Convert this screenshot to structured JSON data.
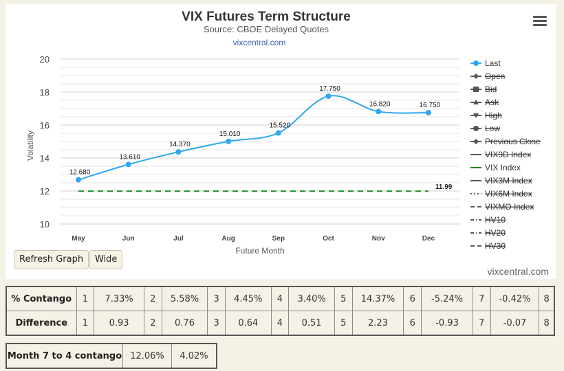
{
  "header": {
    "title": "VIX Futures Term Structure",
    "subtitle": "Source: CBOE Delayed Quotes",
    "link": "vixcentral.com"
  },
  "watermark": "vixcentral.com",
  "buttons": {
    "refresh": "Refresh Graph",
    "wide": "Wide"
  },
  "menu_icon": "hamburger-menu-icon",
  "colors": {
    "last": "#2ea8f2",
    "vix_index": "#1b8a1b",
    "grid": "#d9d9d9"
  },
  "chart_data": {
    "type": "line",
    "title": "VIX Futures Term Structure",
    "subtitle": "Source: CBOE Delayed Quotes",
    "xlabel": "Future Month",
    "ylabel": "Volatility",
    "categories": [
      "May",
      "Jun",
      "Jul",
      "Aug",
      "Sep",
      "Oct",
      "Nov",
      "Dec"
    ],
    "ylim": [
      10,
      20
    ],
    "yticks": [
      10,
      12,
      14,
      16,
      18,
      20
    ],
    "grid": true,
    "legend_position": "right",
    "series": [
      {
        "name": "Last",
        "values": [
          12.68,
          13.61,
          14.37,
          15.01,
          15.52,
          17.75,
          16.82,
          16.75
        ],
        "labels": [
          "12.680",
          "13.610",
          "14.370",
          "15.010",
          "15.520",
          "17.750",
          "16.820",
          "16.750"
        ],
        "style": "solid-marker",
        "color": "#2ea8f2"
      },
      {
        "name": "VIX Index",
        "values": [
          11.99,
          11.99,
          11.99,
          11.99,
          11.99,
          11.99,
          11.99,
          11.99
        ],
        "end_label": "11.99",
        "style": "dashed",
        "color": "#1b8a1b"
      }
    ],
    "legend": [
      {
        "name": "Last",
        "symbol": "circle",
        "color": "#2ea8f2",
        "hidden": false
      },
      {
        "name": "Open",
        "symbol": "diamond",
        "color": "#555555",
        "hidden": true
      },
      {
        "name": "Bid",
        "symbol": "square",
        "color": "#555555",
        "hidden": true
      },
      {
        "name": "Ask",
        "symbol": "triangle",
        "color": "#555555",
        "hidden": true
      },
      {
        "name": "High",
        "symbol": "triangle-down",
        "color": "#555555",
        "hidden": true
      },
      {
        "name": "Low",
        "symbol": "circle",
        "color": "#555555",
        "hidden": true
      },
      {
        "name": "Previous Close",
        "symbol": "diamond",
        "color": "#555555",
        "hidden": true
      },
      {
        "name": "VIX9D Index",
        "symbol": "line",
        "color": "#555555",
        "hidden": true
      },
      {
        "name": "VIX Index",
        "symbol": "line",
        "color": "#1b8a1b",
        "hidden": false
      },
      {
        "name": "VIX3M Index",
        "symbol": "line",
        "color": "#555555",
        "hidden": true
      },
      {
        "name": "VIX6M Index",
        "symbol": "dotted",
        "color": "#555555",
        "hidden": true
      },
      {
        "name": "VIXMO Index",
        "symbol": "dashed",
        "color": "#555555",
        "hidden": true
      },
      {
        "name": "HV10",
        "symbol": "dashdot",
        "color": "#555555",
        "hidden": true
      },
      {
        "name": "HV20",
        "symbol": "dashdot",
        "color": "#555555",
        "hidden": true
      },
      {
        "name": "HV30",
        "symbol": "dashed",
        "color": "#555555",
        "hidden": true
      }
    ]
  },
  "contango_table": {
    "rows": [
      {
        "label": "% Contango",
        "cells": [
          "1",
          "7.33%",
          "2",
          "5.58%",
          "3",
          "4.45%",
          "4",
          "3.40%",
          "5",
          "14.37%",
          "6",
          "-5.24%",
          "7",
          "-0.42%",
          "8"
        ]
      },
      {
        "label": "Difference",
        "cells": [
          "1",
          "0.93",
          "2",
          "0.76",
          "3",
          "0.64",
          "4",
          "0.51",
          "5",
          "2.23",
          "6",
          "-0.93",
          "7",
          "-0.07",
          "8"
        ]
      }
    ]
  },
  "month74": {
    "label": "Month 7 to 4 contango",
    "values": [
      "12.06%",
      "4.02%"
    ]
  }
}
